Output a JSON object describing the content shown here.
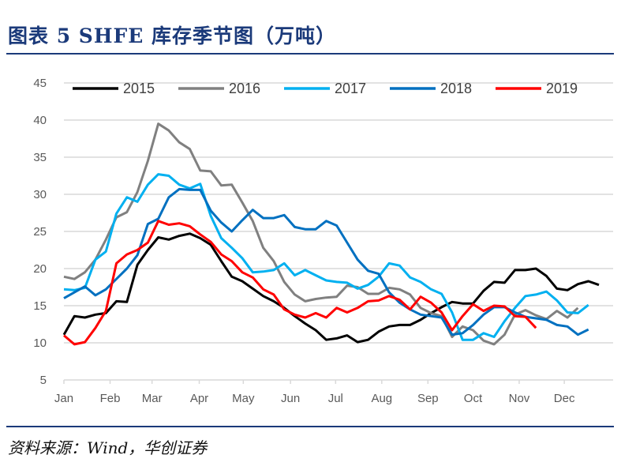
{
  "header": {
    "title": "图表 5   SHFE 库存季节图（万吨）"
  },
  "footer": {
    "source": "资料来源：Wind，华创证券"
  },
  "chart_data": {
    "type": "line",
    "title": "",
    "xlabel": "",
    "ylabel": "",
    "ylim": [
      5,
      45
    ],
    "yticks": [
      5,
      10,
      15,
      20,
      25,
      30,
      35,
      40,
      45
    ],
    "xlim": [
      1,
      52
    ],
    "x_unit": "week",
    "month_ticks": [
      {
        "label": "Jan",
        "week": 1
      },
      {
        "label": "Feb",
        "week": 5.4
      },
      {
        "label": "Mar",
        "week": 9.4
      },
      {
        "label": "Apr",
        "week": 13.9
      },
      {
        "label": "May",
        "week": 18.1
      },
      {
        "label": "Jun",
        "week": 22.6
      },
      {
        "label": "Jul",
        "week": 26.9
      },
      {
        "label": "Aug",
        "week": 31.3
      },
      {
        "label": "Sep",
        "week": 35.7
      },
      {
        "label": "Oct",
        "week": 40
      },
      {
        "label": "Nov",
        "week": 44.4
      },
      {
        "label": "Dec",
        "week": 48.7
      }
    ],
    "grid": true,
    "legend": "top",
    "series": [
      {
        "name": "2015",
        "color": "#000000",
        "values": [
          11.1,
          13.6,
          13.4,
          13.8,
          14,
          15.6,
          15.5,
          20.5,
          22.5,
          24.2,
          23.9,
          24.4,
          24.7,
          24.1,
          23.2,
          21,
          18.9,
          18.3,
          17.3,
          16.3,
          15.6,
          14.7,
          13.6,
          12.6,
          11.7,
          10.4,
          10.6,
          11,
          10.1,
          10.4,
          11.5,
          12.2,
          12.4,
          12.4,
          13.1,
          14,
          14.8,
          15.5,
          15.3,
          15.3,
          17,
          18.2,
          18.1,
          19.8,
          19.8,
          20,
          19,
          17.3,
          17.1,
          17.9,
          18.3,
          17.8
        ]
      },
      {
        "name": "2016",
        "color": "#808080",
        "values": [
          18.9,
          18.6,
          19.5,
          21.2,
          23.9,
          26.9,
          27.6,
          30.3,
          34.5,
          39.5,
          38.6,
          37,
          36.1,
          33.2,
          33.1,
          31.2,
          31.3,
          28.9,
          26.4,
          22.8,
          21,
          18.2,
          16.5,
          15.6,
          15.9,
          16.1,
          16.2,
          17.7,
          17.5,
          16.6,
          16.6,
          17.4,
          17.2,
          16.5,
          14.7,
          14,
          13.6,
          10.8,
          12.2,
          11.7,
          10.3,
          9.8,
          11.1,
          13.8,
          14.4,
          13.7,
          13.2,
          14.3,
          13.4,
          14.7
        ]
      },
      {
        "name": "2017",
        "color": "#00b0f0",
        "values": [
          17.2,
          17.1,
          17.4,
          21.2,
          22.3,
          27.4,
          29.6,
          29,
          31.3,
          32.7,
          32.5,
          31.3,
          30.8,
          31.4,
          27.1,
          24.1,
          22.8,
          21.4,
          19.5,
          19.6,
          19.8,
          20.7,
          19.1,
          19.8,
          19.1,
          18.4,
          18.2,
          18.1,
          17.3,
          17.8,
          18.9,
          20.7,
          20.4,
          18.8,
          18.2,
          17.2,
          16.6,
          14.1,
          10.4,
          10.4,
          11.3,
          10.8,
          12.9,
          14.7,
          16.3,
          16.5,
          16.9,
          15.7,
          14.1,
          14,
          15.1
        ]
      },
      {
        "name": "2018",
        "color": "#0070c0",
        "values": [
          16,
          16.8,
          17.6,
          16.4,
          17.2,
          18.6,
          20,
          21.8,
          26,
          26.7,
          29.6,
          30.7,
          30.6,
          30.6,
          27.8,
          26.2,
          25,
          26.5,
          27.9,
          26.8,
          26.8,
          27.2,
          25.6,
          25.3,
          25.3,
          26.4,
          25.8,
          23.5,
          21.2,
          19.7,
          19.3,
          16.8,
          15.4,
          14.5,
          13.8,
          13.6,
          13.4,
          11.1,
          11.3,
          12.4,
          13.8,
          14.8,
          14.8,
          14.1,
          13.5,
          13.3,
          13.1,
          12.4,
          12.2,
          11.1,
          11.8
        ]
      },
      {
        "name": "2019",
        "color": "#ff0000",
        "values": [
          11,
          9.8,
          10.1,
          12,
          14.3,
          20.7,
          21.9,
          22.5,
          23.5,
          26.4,
          25.9,
          26.1,
          25.7,
          24.6,
          23.6,
          21.9,
          21,
          19.5,
          18.8,
          17.2,
          16.5,
          14.5,
          13.8,
          13.4,
          14,
          13.4,
          14.7,
          14.1,
          14.7,
          15.6,
          15.7,
          16.3,
          15.8,
          14.5,
          16.2,
          15.4,
          14.1,
          11.7,
          13.6,
          15.2,
          14.3,
          15,
          14.9,
          13.6,
          13.5,
          12
        ]
      }
    ]
  }
}
